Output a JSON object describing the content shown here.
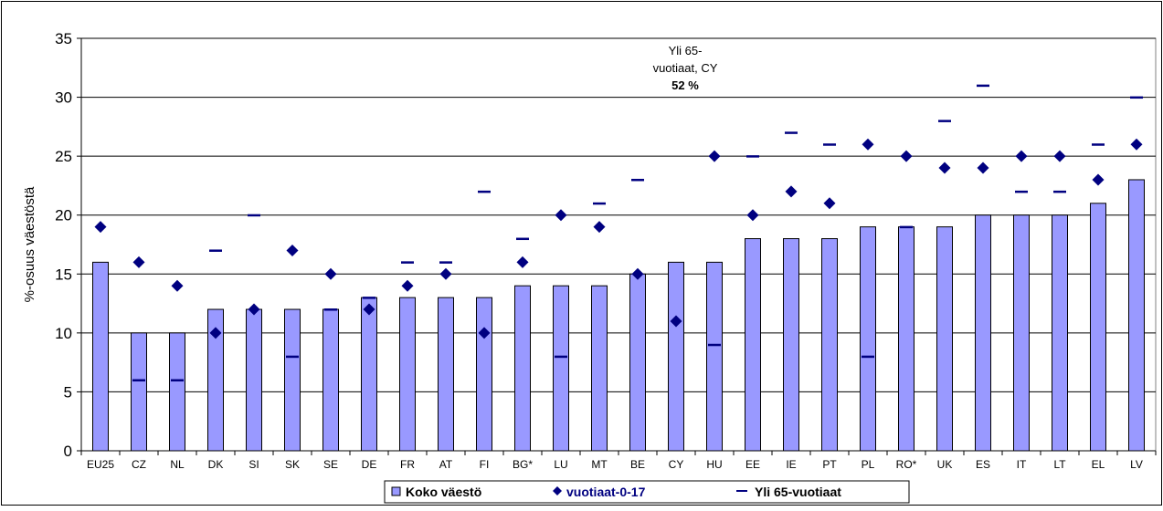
{
  "chart_data": {
    "type": "bar",
    "ylabel": "%-osuus väestöstä",
    "xlabel": "",
    "ylim": [
      0,
      35
    ],
    "yticks": [
      0,
      5,
      10,
      15,
      20,
      25,
      30,
      35
    ],
    "grid": true,
    "legend_position": "bottom",
    "categories": [
      "EU25",
      "CZ",
      "NL",
      "DK",
      "SI",
      "SK",
      "SE",
      "DE",
      "FR",
      "AT",
      "FI",
      "BG*",
      "LU",
      "MT",
      "BE",
      "CY",
      "HU",
      "EE",
      "IE",
      "PT",
      "PL",
      "RO*",
      "UK",
      "ES",
      "IT",
      "LT",
      "EL",
      "LV"
    ],
    "series": [
      {
        "name": "Koko väestö",
        "kind": "bar",
        "color": "#9999ff",
        "values": [
          16,
          10,
          10,
          12,
          12,
          12,
          12,
          13,
          13,
          13,
          13,
          14,
          14,
          14,
          15,
          16,
          16,
          18,
          18,
          18,
          19,
          19,
          19,
          20,
          20,
          20,
          21,
          23
        ]
      },
      {
        "name": "vuotiaat-0-17",
        "kind": "diamond",
        "color": "#000080",
        "values": [
          19,
          16,
          14,
          10,
          12,
          17,
          15,
          12,
          14,
          15,
          10,
          16,
          20,
          19,
          15,
          11,
          25,
          20,
          22,
          21,
          26,
          25,
          24,
          24,
          25,
          25,
          23,
          26
        ]
      },
      {
        "name": "Yli 65-vuotiaat",
        "kind": "dash",
        "color": "#000080",
        "values": [
          null,
          6,
          6,
          17,
          20,
          8,
          12,
          13,
          16,
          16,
          22,
          18,
          8,
          21,
          23,
          null,
          9,
          25,
          27,
          26,
          8,
          19,
          28,
          31,
          22,
          22,
          26,
          30
        ]
      }
    ],
    "annotation": {
      "lines": [
        "Yli 65-",
        "vuotiaat, CY"
      ],
      "value": "52 %"
    }
  }
}
